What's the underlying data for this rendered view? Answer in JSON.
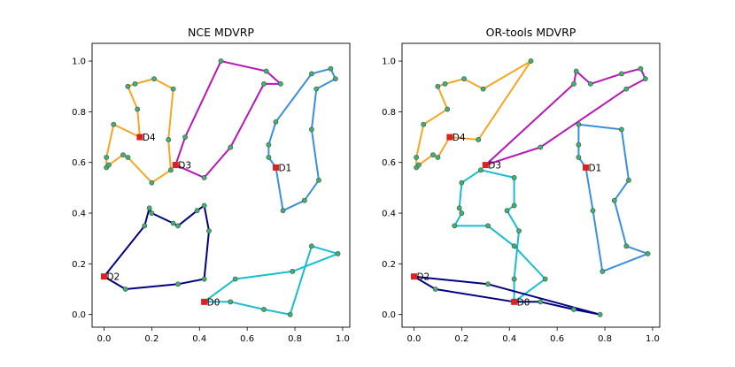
{
  "chart_data": [
    {
      "type": "line",
      "title": "NCE MDVRP",
      "xlabel": "",
      "ylabel": "",
      "xlim": [
        -0.05,
        1.03
      ],
      "ylim": [
        -0.05,
        1.07
      ],
      "xticks": [
        "0.0",
        "0.2",
        "0.4",
        "0.6",
        "0.8",
        "1.0"
      ],
      "yticks": [
        "0.0",
        "0.2",
        "0.4",
        "0.6",
        "0.8",
        "1.0"
      ],
      "depots": [
        {
          "label": "D0",
          "x": 0.42,
          "y": 0.05
        },
        {
          "label": "D1",
          "x": 0.72,
          "y": 0.58
        },
        {
          "label": "D2",
          "x": 0.0,
          "y": 0.15
        },
        {
          "label": "D3",
          "x": 0.3,
          "y": 0.59
        },
        {
          "label": "D4",
          "x": 0.15,
          "y": 0.7
        }
      ],
      "routes": [
        {
          "depot": "D0",
          "color": "#17becf",
          "points": [
            [
              0.42,
              0.05
            ],
            [
              0.53,
              0.05
            ],
            [
              0.67,
              0.02
            ],
            [
              0.78,
              0.0
            ],
            [
              0.87,
              0.27
            ],
            [
              0.98,
              0.24
            ],
            [
              0.79,
              0.17
            ],
            [
              0.55,
              0.14
            ],
            [
              0.42,
              0.05
            ]
          ]
        },
        {
          "depot": "D1",
          "color": "#3b8fde",
          "points": [
            [
              0.72,
              0.58
            ],
            [
              0.69,
              0.62
            ],
            [
              0.69,
              0.67
            ],
            [
              0.72,
              0.76
            ],
            [
              0.87,
              0.95
            ],
            [
              0.95,
              0.97
            ],
            [
              0.97,
              0.93
            ],
            [
              0.89,
              0.89
            ],
            [
              0.87,
              0.73
            ],
            [
              0.9,
              0.53
            ],
            [
              0.84,
              0.45
            ],
            [
              0.75,
              0.41
            ],
            [
              0.72,
              0.58
            ]
          ]
        },
        {
          "depot": "D2",
          "color": "#000080",
          "points": [
            [
              0.0,
              0.15
            ],
            [
              0.09,
              0.1
            ],
            [
              0.31,
              0.12
            ],
            [
              0.42,
              0.14
            ],
            [
              0.44,
              0.33
            ],
            [
              0.42,
              0.43
            ],
            [
              0.39,
              0.41
            ],
            [
              0.31,
              0.35
            ],
            [
              0.29,
              0.36
            ],
            [
              0.2,
              0.4
            ],
            [
              0.19,
              0.42
            ],
            [
              0.17,
              0.35
            ],
            [
              0.0,
              0.15
            ]
          ]
        },
        {
          "depot": "D3",
          "color": "#b817b8",
          "points": [
            [
              0.3,
              0.59
            ],
            [
              0.34,
              0.7
            ],
            [
              0.49,
              1.0
            ],
            [
              0.68,
              0.96
            ],
            [
              0.74,
              0.91
            ],
            [
              0.67,
              0.91
            ],
            [
              0.53,
              0.66
            ],
            [
              0.42,
              0.54
            ],
            [
              0.3,
              0.59
            ]
          ]
        },
        {
          "depot": "D4",
          "color": "#f5a623",
          "points": [
            [
              0.15,
              0.7
            ],
            [
              0.04,
              0.75
            ],
            [
              0.01,
              0.62
            ],
            [
              0.01,
              0.58
            ],
            [
              0.02,
              0.59
            ],
            [
              0.08,
              0.63
            ],
            [
              0.1,
              0.62
            ],
            [
              0.2,
              0.52
            ],
            [
              0.28,
              0.57
            ],
            [
              0.27,
              0.69
            ],
            [
              0.29,
              0.89
            ],
            [
              0.21,
              0.93
            ],
            [
              0.13,
              0.91
            ],
            [
              0.1,
              0.9
            ],
            [
              0.14,
              0.81
            ],
            [
              0.15,
              0.7
            ]
          ]
        }
      ]
    },
    {
      "type": "line",
      "title": "OR-tools MDVRP",
      "xlabel": "",
      "ylabel": "",
      "xlim": [
        -0.05,
        1.03
      ],
      "ylim": [
        -0.05,
        1.07
      ],
      "xticks": [
        "0.0",
        "0.2",
        "0.4",
        "0.6",
        "0.8",
        "1.0"
      ],
      "yticks": [
        "0.0",
        "0.2",
        "0.4",
        "0.6",
        "0.8",
        "1.0"
      ],
      "depots": [
        {
          "label": "D0",
          "x": 0.42,
          "y": 0.05
        },
        {
          "label": "D1",
          "x": 0.72,
          "y": 0.58
        },
        {
          "label": "D2",
          "x": 0.0,
          "y": 0.15
        },
        {
          "label": "D3",
          "x": 0.3,
          "y": 0.59
        },
        {
          "label": "D4",
          "x": 0.15,
          "y": 0.7
        }
      ],
      "routes": [
        {
          "depot": "D0",
          "color": "#17becf",
          "points": [
            [
              0.42,
              0.05
            ],
            [
              0.55,
              0.14
            ],
            [
              0.42,
              0.27
            ],
            [
              0.31,
              0.35
            ],
            [
              0.17,
              0.35
            ],
            [
              0.2,
              0.4
            ],
            [
              0.19,
              0.42
            ],
            [
              0.2,
              0.52
            ],
            [
              0.28,
              0.57
            ],
            [
              0.42,
              0.54
            ],
            [
              0.42,
              0.43
            ],
            [
              0.39,
              0.41
            ],
            [
              0.44,
              0.33
            ],
            [
              0.42,
              0.14
            ],
            [
              0.42,
              0.05
            ]
          ]
        },
        {
          "depot": "D1",
          "color": "#3b8fde",
          "points": [
            [
              0.72,
              0.58
            ],
            [
              0.69,
              0.62
            ],
            [
              0.69,
              0.67
            ],
            [
              0.69,
              0.75
            ],
            [
              0.87,
              0.73
            ],
            [
              0.9,
              0.53
            ],
            [
              0.84,
              0.45
            ],
            [
              0.89,
              0.27
            ],
            [
              0.98,
              0.24
            ],
            [
              0.79,
              0.17
            ],
            [
              0.75,
              0.41
            ],
            [
              0.72,
              0.58
            ]
          ]
        },
        {
          "depot": "D2",
          "color": "#000080",
          "points": [
            [
              0.0,
              0.15
            ],
            [
              0.09,
              0.1
            ],
            [
              0.42,
              0.05
            ],
            [
              0.53,
              0.05
            ],
            [
              0.67,
              0.02
            ],
            [
              0.78,
              0.0
            ],
            [
              0.31,
              0.12
            ],
            [
              0.0,
              0.15
            ]
          ]
        },
        {
          "depot": "D3",
          "color": "#b817b8",
          "points": [
            [
              0.3,
              0.59
            ],
            [
              0.53,
              0.66
            ],
            [
              0.89,
              0.89
            ],
            [
              0.97,
              0.93
            ],
            [
              0.95,
              0.97
            ],
            [
              0.87,
              0.95
            ],
            [
              0.74,
              0.91
            ],
            [
              0.68,
              0.96
            ],
            [
              0.67,
              0.91
            ],
            [
              0.3,
              0.59
            ]
          ]
        },
        {
          "depot": "D4",
          "color": "#f5a623",
          "points": [
            [
              0.15,
              0.7
            ],
            [
              0.27,
              0.69
            ],
            [
              0.49,
              1.0
            ],
            [
              0.29,
              0.89
            ],
            [
              0.21,
              0.93
            ],
            [
              0.13,
              0.91
            ],
            [
              0.1,
              0.9
            ],
            [
              0.14,
              0.81
            ],
            [
              0.04,
              0.75
            ],
            [
              0.01,
              0.62
            ],
            [
              0.01,
              0.58
            ],
            [
              0.02,
              0.59
            ],
            [
              0.08,
              0.63
            ],
            [
              0.1,
              0.62
            ],
            [
              0.15,
              0.7
            ]
          ]
        }
      ]
    }
  ]
}
